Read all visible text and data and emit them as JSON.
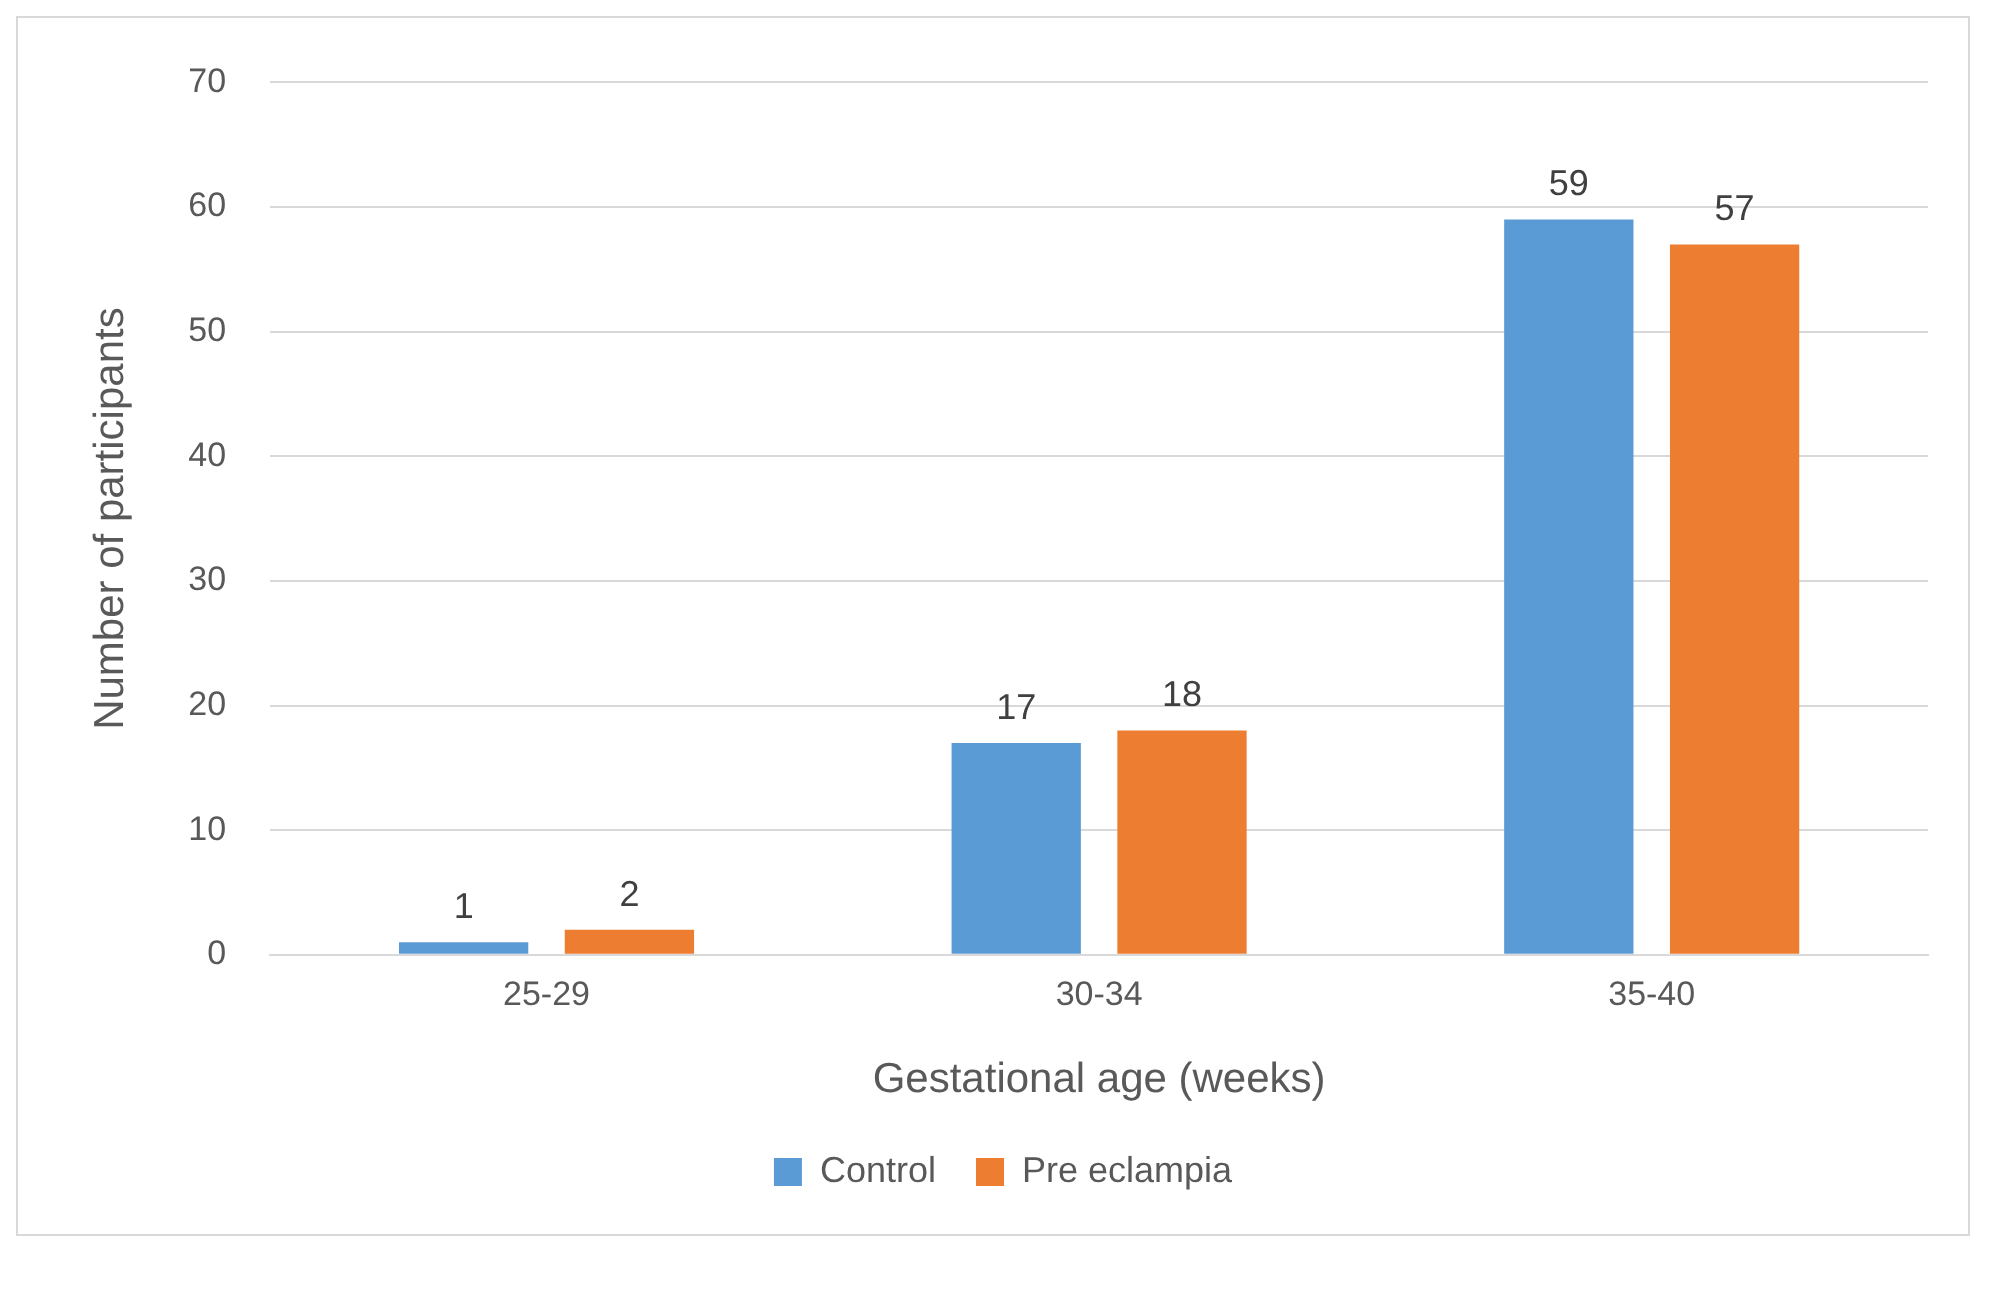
{
  "chart_data": {
    "type": "bar",
    "xlabel": "Gestational age (weeks)",
    "ylabel": "Number of participants",
    "categories": [
      "25-29",
      "30-34",
      "35-40"
    ],
    "series": [
      {
        "name": "Control",
        "color": "#5b9bd5",
        "values": [
          1,
          17,
          59
        ]
      },
      {
        "name": "Pre eclampia",
        "color": "#ed7d31",
        "values": [
          2,
          18,
          57
        ]
      }
    ],
    "ylim": [
      0,
      70
    ],
    "yticks": [
      0,
      10,
      20,
      30,
      40,
      50,
      60,
      70
    ],
    "grid": "y",
    "legend": "bottom",
    "data_labels": true
  }
}
